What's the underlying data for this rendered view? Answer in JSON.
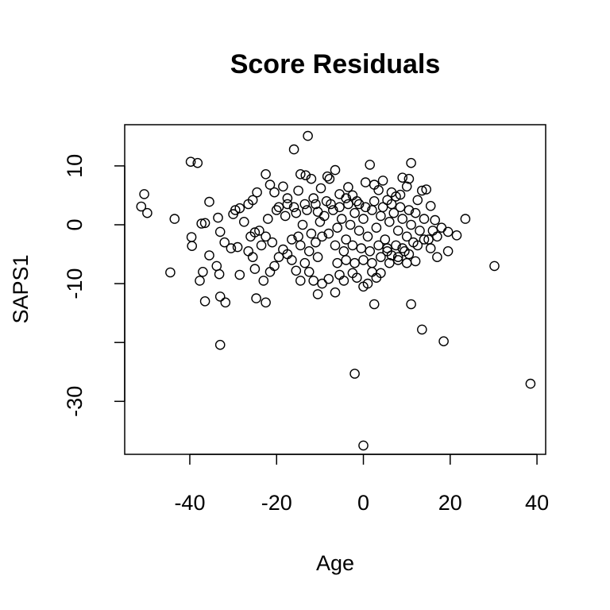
{
  "chart_data": {
    "type": "scatter",
    "title": "Score Residuals",
    "xlabel": "Age",
    "ylabel": "SAPS1",
    "xlim": [
      -55,
      42
    ],
    "ylim": [
      -39,
      17
    ],
    "xticks": [
      -40,
      -20,
      0,
      20,
      40
    ],
    "yticks": [
      -30,
      -20,
      -10,
      0,
      10
    ],
    "ytick_labels": [
      "-30",
      "",
      "-10",
      "0",
      "10"
    ],
    "grid": false,
    "legend": "none",
    "marker": "open-circle",
    "color": "#000000",
    "points": [
      [
        -50.5,
        5.2
      ],
      [
        -51.2,
        3.1
      ],
      [
        -49.8,
        2.0
      ],
      [
        -43.5,
        1.0
      ],
      [
        -44.5,
        -8.1
      ],
      [
        -39.8,
        10.7
      ],
      [
        -38.2,
        10.5
      ],
      [
        -39.6,
        -2.1
      ],
      [
        -39.5,
        -3.6
      ],
      [
        -35.5,
        3.9
      ],
      [
        -36.5,
        0.3
      ],
      [
        -37.3,
        0.2
      ],
      [
        -33.5,
        1.2
      ],
      [
        -33.0,
        -1.2
      ],
      [
        -35.5,
        -5.2
      ],
      [
        -37.0,
        -8.0
      ],
      [
        -37.7,
        -9.5
      ],
      [
        -33.8,
        -7.0
      ],
      [
        -33.2,
        -8.4
      ],
      [
        -36.5,
        -13.0
      ],
      [
        -33.0,
        -12.2
      ],
      [
        -31.8,
        -13.2
      ],
      [
        -33.0,
        -20.4
      ],
      [
        -30.5,
        -4.0
      ],
      [
        -32.0,
        -3.0
      ],
      [
        -29.5,
        2.5
      ],
      [
        -30.0,
        1.8
      ],
      [
        -28.5,
        2.8
      ],
      [
        -27.5,
        0.5
      ],
      [
        -29.0,
        -3.8
      ],
      [
        -28.5,
        -8.5
      ],
      [
        -26.5,
        3.5
      ],
      [
        -25.5,
        4.2
      ],
      [
        -24.5,
        5.5
      ],
      [
        -26.0,
        -2.0
      ],
      [
        -25.0,
        -1.3
      ],
      [
        -26.5,
        -4.5
      ],
      [
        -25.5,
        -5.5
      ],
      [
        -25.0,
        -7.5
      ],
      [
        -24.7,
        -12.5
      ],
      [
        -22.5,
        -13.2
      ],
      [
        -23.0,
        -9.5
      ],
      [
        -21.5,
        -8.0
      ],
      [
        -22.5,
        8.6
      ],
      [
        -21.5,
        6.8
      ],
      [
        -20.5,
        5.5
      ],
      [
        -19.5,
        3.0
      ],
      [
        -18.5,
        6.5
      ],
      [
        -17.5,
        4.5
      ],
      [
        -16.0,
        12.8
      ],
      [
        -15.0,
        5.8
      ],
      [
        -14.5,
        8.6
      ],
      [
        -13.3,
        8.4
      ],
      [
        -12.8,
        15.1
      ],
      [
        -12.0,
        7.8
      ],
      [
        -11.0,
        3.5
      ],
      [
        -10.5,
        2.2
      ],
      [
        -9.8,
        6.2
      ],
      [
        -8.3,
        8.2
      ],
      [
        -7.8,
        7.8
      ],
      [
        -6.5,
        9.3
      ],
      [
        -5.5,
        5.2
      ],
      [
        -4.0,
        4.5
      ],
      [
        -3.5,
        6.4
      ],
      [
        -2.5,
        5.0
      ],
      [
        -1.0,
        3.5
      ],
      [
        0.5,
        7.2
      ],
      [
        1.5,
        10.2
      ],
      [
        2.5,
        6.8
      ],
      [
        3.5,
        5.9
      ],
      [
        4.5,
        7.5
      ],
      [
        5.5,
        4.2
      ],
      [
        6.5,
        5.5
      ],
      [
        7.5,
        4.8
      ],
      [
        8.5,
        5.1
      ],
      [
        9.0,
        8.0
      ],
      [
        10.0,
        6.5
      ],
      [
        10.5,
        7.8
      ],
      [
        11.0,
        10.5
      ],
      [
        12.5,
        4.2
      ],
      [
        13.5,
        5.8
      ],
      [
        14.5,
        6.0
      ],
      [
        15.5,
        3.2
      ],
      [
        16.5,
        0.8
      ],
      [
        17.0,
        -2.0
      ],
      [
        18.0,
        -0.5
      ],
      [
        19.5,
        -1.2
      ],
      [
        21.5,
        -1.8
      ],
      [
        23.5,
        1.0
      ],
      [
        30.2,
        -7.0
      ],
      [
        38.5,
        -27.0
      ],
      [
        19.5,
        -4.5
      ],
      [
        17.0,
        -5.5
      ],
      [
        15.5,
        -4.0
      ],
      [
        14.0,
        -2.5
      ],
      [
        12.5,
        -3.5
      ],
      [
        12.0,
        -6.2
      ],
      [
        10.5,
        -5.0
      ],
      [
        11.0,
        -13.5
      ],
      [
        13.5,
        -17.8
      ],
      [
        18.5,
        -19.8
      ],
      [
        9.0,
        -4.0
      ],
      [
        8.0,
        -6.0
      ],
      [
        6.5,
        -5.2
      ],
      [
        5.5,
        -4.5
      ],
      [
        4.0,
        -8.2
      ],
      [
        2.0,
        -8.0
      ],
      [
        2.5,
        -13.5
      ],
      [
        1.0,
        -10.0
      ],
      [
        0.0,
        -10.5
      ],
      [
        -1.5,
        -9.0
      ],
      [
        -2.5,
        -8.2
      ],
      [
        -2.0,
        -25.3
      ],
      [
        0.0,
        -37.5
      ],
      [
        -4.5,
        -9.5
      ],
      [
        -5.5,
        -8.5
      ],
      [
        -6.5,
        -11.5
      ],
      [
        -8.0,
        -9.2
      ],
      [
        -9.5,
        -10.0
      ],
      [
        -10.5,
        -11.8
      ],
      [
        -11.5,
        -9.5
      ],
      [
        -12.5,
        -8.0
      ],
      [
        -13.5,
        -6.5
      ],
      [
        -14.5,
        -9.5
      ],
      [
        -15.5,
        -7.8
      ],
      [
        -16.5,
        -6.0
      ],
      [
        -17.5,
        -5.0
      ],
      [
        -18.5,
        -4.2
      ],
      [
        -19.5,
        -5.5
      ],
      [
        -20.5,
        -7.0
      ],
      [
        -21.0,
        -3.0
      ],
      [
        -22.5,
        -2.0
      ],
      [
        -23.5,
        -3.5
      ],
      [
        -24.0,
        -1.0
      ],
      [
        -22.0,
        1.0
      ],
      [
        -20.0,
        2.5
      ],
      [
        -18.0,
        1.5
      ],
      [
        -16.0,
        3.0
      ],
      [
        -15.0,
        -2.0
      ],
      [
        -14.0,
        0.0
      ],
      [
        -13.0,
        2.5
      ],
      [
        -12.0,
        -1.5
      ],
      [
        -11.0,
        -3.0
      ],
      [
        -10.0,
        0.5
      ],
      [
        -9.0,
        1.5
      ],
      [
        -8.0,
        -1.5
      ],
      [
        -7.0,
        2.5
      ],
      [
        -6.0,
        -0.5
      ],
      [
        -5.0,
        1.0
      ],
      [
        -4.0,
        -2.5
      ],
      [
        -3.0,
        0.0
      ],
      [
        -2.0,
        2.0
      ],
      [
        -1.0,
        -1.0
      ],
      [
        0.0,
        1.0
      ],
      [
        1.0,
        -2.0
      ],
      [
        2.0,
        2.5
      ],
      [
        3.0,
        -0.5
      ],
      [
        4.0,
        1.5
      ],
      [
        5.0,
        -2.5
      ],
      [
        6.0,
        0.5
      ],
      [
        7.0,
        2.0
      ],
      [
        8.0,
        -1.0
      ],
      [
        9.0,
        1.0
      ],
      [
        10.0,
        -2.0
      ],
      [
        11.0,
        0.0
      ],
      [
        12.0,
        2.0
      ],
      [
        13.0,
        -1.0
      ],
      [
        14.0,
        1.0
      ],
      [
        15.0,
        -2.5
      ],
      [
        16.0,
        -1.0
      ],
      [
        -7.5,
        3.5
      ],
      [
        -6.5,
        -3.5
      ],
      [
        -5.5,
        3.0
      ],
      [
        -4.5,
        -4.5
      ],
      [
        -3.5,
        3.5
      ],
      [
        -2.5,
        -3.5
      ],
      [
        -1.5,
        4.0
      ],
      [
        -0.5,
        -4.0
      ],
      [
        0.5,
        3.0
      ],
      [
        1.5,
        -4.5
      ],
      [
        2.5,
        4.0
      ],
      [
        3.5,
        -3.5
      ],
      [
        4.5,
        3.0
      ],
      [
        5.5,
        -4.0
      ],
      [
        6.5,
        3.5
      ],
      [
        7.5,
        -3.5
      ],
      [
        8.5,
        3.0
      ],
      [
        9.5,
        -4.5
      ],
      [
        10.5,
        2.5
      ],
      [
        11.5,
        -3.0
      ],
      [
        -9.5,
        -2.0
      ],
      [
        -8.5,
        4.0
      ],
      [
        -10.5,
        -5.5
      ],
      [
        -11.5,
        4.5
      ],
      [
        -12.5,
        -4.5
      ],
      [
        -13.5,
        3.5
      ],
      [
        -14.5,
        -3.5
      ],
      [
        -15.5,
        2.0
      ],
      [
        -16.5,
        -2.5
      ],
      [
        -17.5,
        3.5
      ],
      [
        -6.0,
        -6.5
      ],
      [
        -4.0,
        -6.0
      ],
      [
        -2.0,
        -6.5
      ],
      [
        0.0,
        -6.0
      ],
      [
        2.0,
        -6.5
      ],
      [
        4.0,
        -5.5
      ],
      [
        6.0,
        -6.5
      ],
      [
        8.0,
        -5.5
      ],
      [
        10.0,
        -6.5
      ],
      [
        3.0,
        -9.0
      ]
    ]
  }
}
